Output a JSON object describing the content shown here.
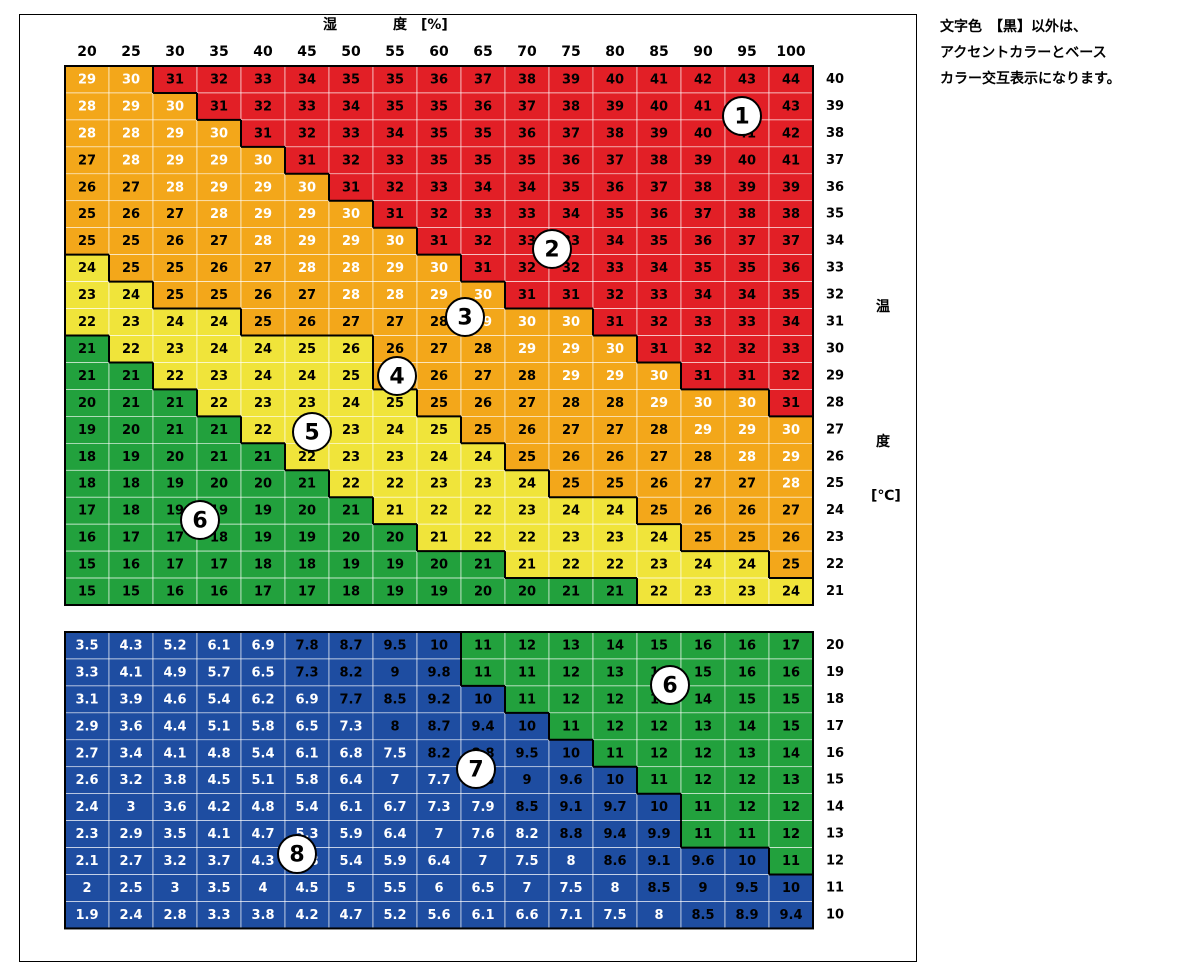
{
  "title_humidity": "湿　　　　度　[%]",
  "title_temp_chars": [
    "温",
    "度"
  ],
  "temp_unit": "[℃]",
  "note_lines": [
    "文字色　【黒】以外は、",
    "アクセントカラーとベース",
    "カラー交互表示になります。"
  ],
  "colors": {
    "red": "#e21f26",
    "orange": "#f3a71a",
    "yellow": "#f0e43a",
    "green": "#22a13d",
    "blue": "#1e4da1"
  },
  "chart_data": {
    "type": "heatmap",
    "x_label": "湿度 [%]",
    "y_label": "温度 [℃]",
    "humidity": [
      "20",
      "25",
      "30",
      "35",
      "40",
      "45",
      "50",
      "55",
      "60",
      "65",
      "70",
      "75",
      "80",
      "85",
      "90",
      "95",
      "100"
    ],
    "upper": {
      "temps": [
        "40",
        "39",
        "38",
        "37",
        "36",
        "35",
        "34",
        "33",
        "32",
        "31",
        "30",
        "29",
        "28",
        "27",
        "26",
        "25",
        "24",
        "23",
        "22",
        "21"
      ],
      "values": [
        [
          "29",
          "30",
          "31",
          "32",
          "33",
          "34",
          "35",
          "35",
          "36",
          "37",
          "38",
          "39",
          "40",
          "41",
          "42",
          "43",
          "44"
        ],
        [
          "28",
          "29",
          "30",
          "31",
          "32",
          "33",
          "34",
          "35",
          "35",
          "36",
          "37",
          "38",
          "39",
          "40",
          "41",
          "42",
          "43"
        ],
        [
          "28",
          "28",
          "29",
          "30",
          "31",
          "32",
          "33",
          "34",
          "35",
          "35",
          "36",
          "37",
          "38",
          "39",
          "40",
          "41",
          "42"
        ],
        [
          "27",
          "28",
          "29",
          "29",
          "30",
          "31",
          "32",
          "33",
          "35",
          "35",
          "35",
          "36",
          "37",
          "38",
          "39",
          "40",
          "41"
        ],
        [
          "26",
          "27",
          "28",
          "29",
          "29",
          "30",
          "31",
          "32",
          "33",
          "34",
          "34",
          "35",
          "36",
          "37",
          "38",
          "39",
          "39"
        ],
        [
          "25",
          "26",
          "27",
          "28",
          "29",
          "29",
          "30",
          "31",
          "32",
          "33",
          "33",
          "34",
          "35",
          "36",
          "37",
          "38",
          "38"
        ],
        [
          "25",
          "25",
          "26",
          "27",
          "28",
          "29",
          "29",
          "30",
          "31",
          "32",
          "33",
          "33",
          "34",
          "35",
          "36",
          "37",
          "37"
        ],
        [
          "24",
          "25",
          "25",
          "26",
          "27",
          "28",
          "28",
          "29",
          "30",
          "31",
          "32",
          "32",
          "33",
          "34",
          "35",
          "35",
          "36"
        ],
        [
          "23",
          "24",
          "25",
          "25",
          "26",
          "27",
          "28",
          "28",
          "29",
          "30",
          "31",
          "31",
          "32",
          "33",
          "34",
          "34",
          "35"
        ],
        [
          "22",
          "23",
          "24",
          "24",
          "25",
          "26",
          "27",
          "27",
          "28",
          "29",
          "30",
          "30",
          "31",
          "32",
          "33",
          "33",
          "34"
        ],
        [
          "21",
          "22",
          "23",
          "24",
          "24",
          "25",
          "26",
          "26",
          "27",
          "28",
          "29",
          "29",
          "30",
          "31",
          "32",
          "32",
          "33"
        ],
        [
          "21",
          "21",
          "22",
          "23",
          "24",
          "24",
          "25",
          "26",
          "26",
          "27",
          "28",
          "29",
          "29",
          "30",
          "31",
          "31",
          "32"
        ],
        [
          "20",
          "21",
          "21",
          "22",
          "23",
          "23",
          "24",
          "25",
          "25",
          "26",
          "27",
          "28",
          "28",
          "29",
          "30",
          "30",
          "31"
        ],
        [
          "19",
          "20",
          "21",
          "21",
          "22",
          "23",
          "23",
          "24",
          "25",
          "25",
          "26",
          "27",
          "27",
          "28",
          "29",
          "29",
          "30"
        ],
        [
          "18",
          "19",
          "20",
          "21",
          "21",
          "22",
          "23",
          "23",
          "24",
          "24",
          "25",
          "26",
          "26",
          "27",
          "28",
          "28",
          "29"
        ],
        [
          "18",
          "18",
          "19",
          "20",
          "20",
          "21",
          "22",
          "22",
          "23",
          "23",
          "24",
          "25",
          "25",
          "26",
          "27",
          "27",
          "28"
        ],
        [
          "17",
          "18",
          "19",
          "19",
          "19",
          "20",
          "21",
          "21",
          "22",
          "22",
          "23",
          "24",
          "24",
          "25",
          "26",
          "26",
          "27"
        ],
        [
          "16",
          "17",
          "17",
          "18",
          "19",
          "19",
          "20",
          "20",
          "21",
          "22",
          "22",
          "23",
          "23",
          "24",
          "25",
          "25",
          "26"
        ],
        [
          "15",
          "16",
          "17",
          "17",
          "18",
          "18",
          "19",
          "19",
          "20",
          "21",
          "21",
          "22",
          "22",
          "23",
          "24",
          "24",
          "25"
        ],
        [
          "15",
          "15",
          "16",
          "16",
          "17",
          "17",
          "18",
          "19",
          "19",
          "20",
          "20",
          "21",
          "21",
          "22",
          "23",
          "23",
          "24"
        ]
      ],
      "zones": [
        "OOAAAAAAAAAAAAAAA",
        "OOOAAAAAAAAAAAAAA",
        "OOOOAAAAAAAAAAAAA",
        "OOOOOAAAAAAAAAAAA",
        "OOOOOOAAAAAAAAAAA",
        "OOOOOOOAAAAAAAAAA",
        "OOOOOOOOAAAAAAAAA",
        "YOOOOOOOOAAAAAAAA",
        "YYOOOOOOOOAAAAAAA",
        "YYYYOOOOOOOOAAAAA",
        "GYYYYYYOOOOOOAAAA",
        "GGYYYYYOOOOOOOAAA",
        "GGGYYYYYOOOOOOOOA",
        "GGGGYYYYYOOOOOOOO",
        "GGGGGYYYYYOOOOOOO",
        "GGGGGGYYYYYOOOOOO",
        "GGGGGGGYYYYYYOOOO",
        "GGGGGGGGYYYYYYOOO",
        "GGGGGGGGGGYYYYYYO",
        "GGGGGGGGGGGGGYYYY"
      ],
      "white_text": [
        "11000000000000000",
        "11100000000000000",
        "11110000000000000",
        "01111000000000000",
        "00111100000000000",
        "00011110000000000",
        "00001111000000000",
        "00000111100000000",
        "00000011110000000",
        "00000000011100000",
        "00000000001110000",
        "00000000000111000",
        "00000000000001110",
        "00000000000000111",
        "00000000000000011",
        "00000000000000001",
        "00000000000000000",
        "00000000000000000",
        "00000000000000000",
        "00000000000000000"
      ]
    },
    "lower": {
      "temps": [
        "20",
        "19",
        "18",
        "17",
        "16",
        "15",
        "14",
        "13",
        "12",
        "11",
        "10"
      ],
      "values": [
        [
          "3.5",
          "4.3",
          "5.2",
          "6.1",
          "6.9",
          "7.8",
          "8.7",
          "9.5",
          "10",
          "11",
          "12",
          "13",
          "14",
          "15",
          "16",
          "16",
          "17"
        ],
        [
          "3.3",
          "4.1",
          "4.9",
          "5.7",
          "6.5",
          "7.3",
          "8.2",
          "9",
          "9.8",
          "11",
          "11",
          "12",
          "13",
          "14",
          "15",
          "16",
          "16"
        ],
        [
          "3.1",
          "3.9",
          "4.6",
          "5.4",
          "6.2",
          "6.9",
          "7.7",
          "8.5",
          "9.2",
          "10",
          "11",
          "12",
          "12",
          "13",
          "14",
          "15",
          "15"
        ],
        [
          "2.9",
          "3.6",
          "4.4",
          "5.1",
          "5.8",
          "6.5",
          "7.3",
          "8",
          "8.7",
          "9.4",
          "10",
          "11",
          "12",
          "12",
          "13",
          "14",
          "15"
        ],
        [
          "2.7",
          "3.4",
          "4.1",
          "4.8",
          "5.4",
          "6.1",
          "6.8",
          "7.5",
          "8.2",
          "8.8",
          "9.5",
          "10",
          "11",
          "12",
          "12",
          "13",
          "14"
        ],
        [
          "2.6",
          "3.2",
          "3.8",
          "4.5",
          "5.1",
          "5.8",
          "6.4",
          "7",
          "7.7",
          "8.3",
          "9",
          "9.6",
          "10",
          "11",
          "12",
          "12",
          "13"
        ],
        [
          "2.4",
          "3",
          "3.6",
          "4.2",
          "4.8",
          "5.4",
          "6.1",
          "6.7",
          "7.3",
          "7.9",
          "8.5",
          "9.1",
          "9.7",
          "10",
          "11",
          "12",
          "12"
        ],
        [
          "2.3",
          "2.9",
          "3.5",
          "4.1",
          "4.7",
          "5.3",
          "5.9",
          "6.4",
          "7",
          "7.6",
          "8.2",
          "8.8",
          "9.4",
          "9.9",
          "11",
          "11",
          "12"
        ],
        [
          "2.1",
          "2.7",
          "3.2",
          "3.7",
          "4.3",
          "4.8",
          "5.4",
          "5.9",
          "6.4",
          "7",
          "7.5",
          "8",
          "8.6",
          "9.1",
          "9.6",
          "10",
          "11"
        ],
        [
          "2",
          "2.5",
          "3",
          "3.5",
          "4",
          "4.5",
          "5",
          "5.5",
          "6",
          "6.5",
          "7",
          "7.5",
          "8",
          "8.5",
          "9",
          "9.5",
          "10"
        ],
        [
          "1.9",
          "2.4",
          "2.8",
          "3.3",
          "3.8",
          "4.2",
          "4.7",
          "5.2",
          "5.6",
          "6.1",
          "6.6",
          "7.1",
          "7.5",
          "8",
          "8.5",
          "8.9",
          "9.4"
        ]
      ],
      "zones": [
        "BBBBBBBBBGGGGGGGG",
        "BBBBBBBBBGGGGGGGG",
        "BBBBBBBBBBGGGGGGG",
        "BBBBBBBBBBBGGGGGG",
        "BBBBBBBBBBBBGGGGG",
        "BBBBBBBBBBBBBGGGG",
        "BBBBBBBBBBBBBBGGG",
        "BBBBBBBBBBBBBBGGG",
        "BBBBBBBBBBBBBBBBG",
        "BBBBBBBBBBBBBBBBB",
        "BBBBBBBBBBBBBBBBB"
      ],
      "white_text": [
        "11111000000000000",
        "11111000000000000",
        "11111100000000000",
        "11111110000000000",
        "11111111000000000",
        "11111111100000000",
        "11111111110000000",
        "11111111111000000",
        "11111111111100000",
        "11111111111110000",
        "11111111111111000"
      ]
    },
    "zone_numbers": [
      {
        "label": "1",
        "zone": "extreme_danger"
      },
      {
        "label": "2",
        "zone": "danger"
      },
      {
        "label": "3",
        "zone": "severe_caution"
      },
      {
        "label": "4",
        "zone": "caution"
      },
      {
        "label": "5",
        "zone": "attention"
      },
      {
        "label": "6",
        "zone": "safe"
      },
      {
        "label": "7",
        "zone": "low_humidity"
      },
      {
        "label": "8",
        "zone": "very_low_humidity"
      }
    ]
  }
}
